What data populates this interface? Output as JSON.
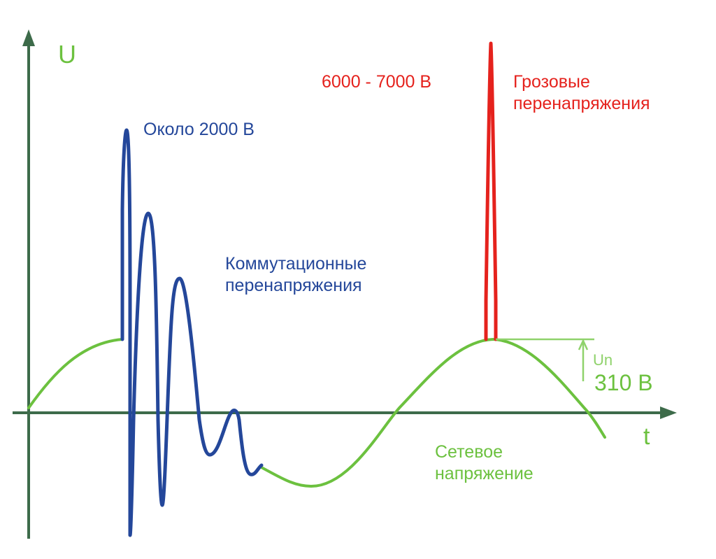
{
  "axes": {
    "y_label": "U",
    "x_label": "t"
  },
  "labels": {
    "switching_peak": "Около 2000 В",
    "switching_title_line1": "Коммутационные",
    "switching_title_line2": "перенапряжения",
    "lightning_value": "6000 - 7000 В",
    "lightning_title_line1": "Грозовые",
    "lightning_title_line2": "перенапряжения",
    "amplitude_symbol": "Un",
    "amplitude_value": "310 В",
    "mains_line1": "Сетевое",
    "mains_line2": "напряжение"
  },
  "colors": {
    "axis": "#3d6b4a",
    "mains": "#6cc13f",
    "switching": "#24479a",
    "lightning": "#e5221d",
    "amplitude_marker": "#8fd26b"
  }
}
